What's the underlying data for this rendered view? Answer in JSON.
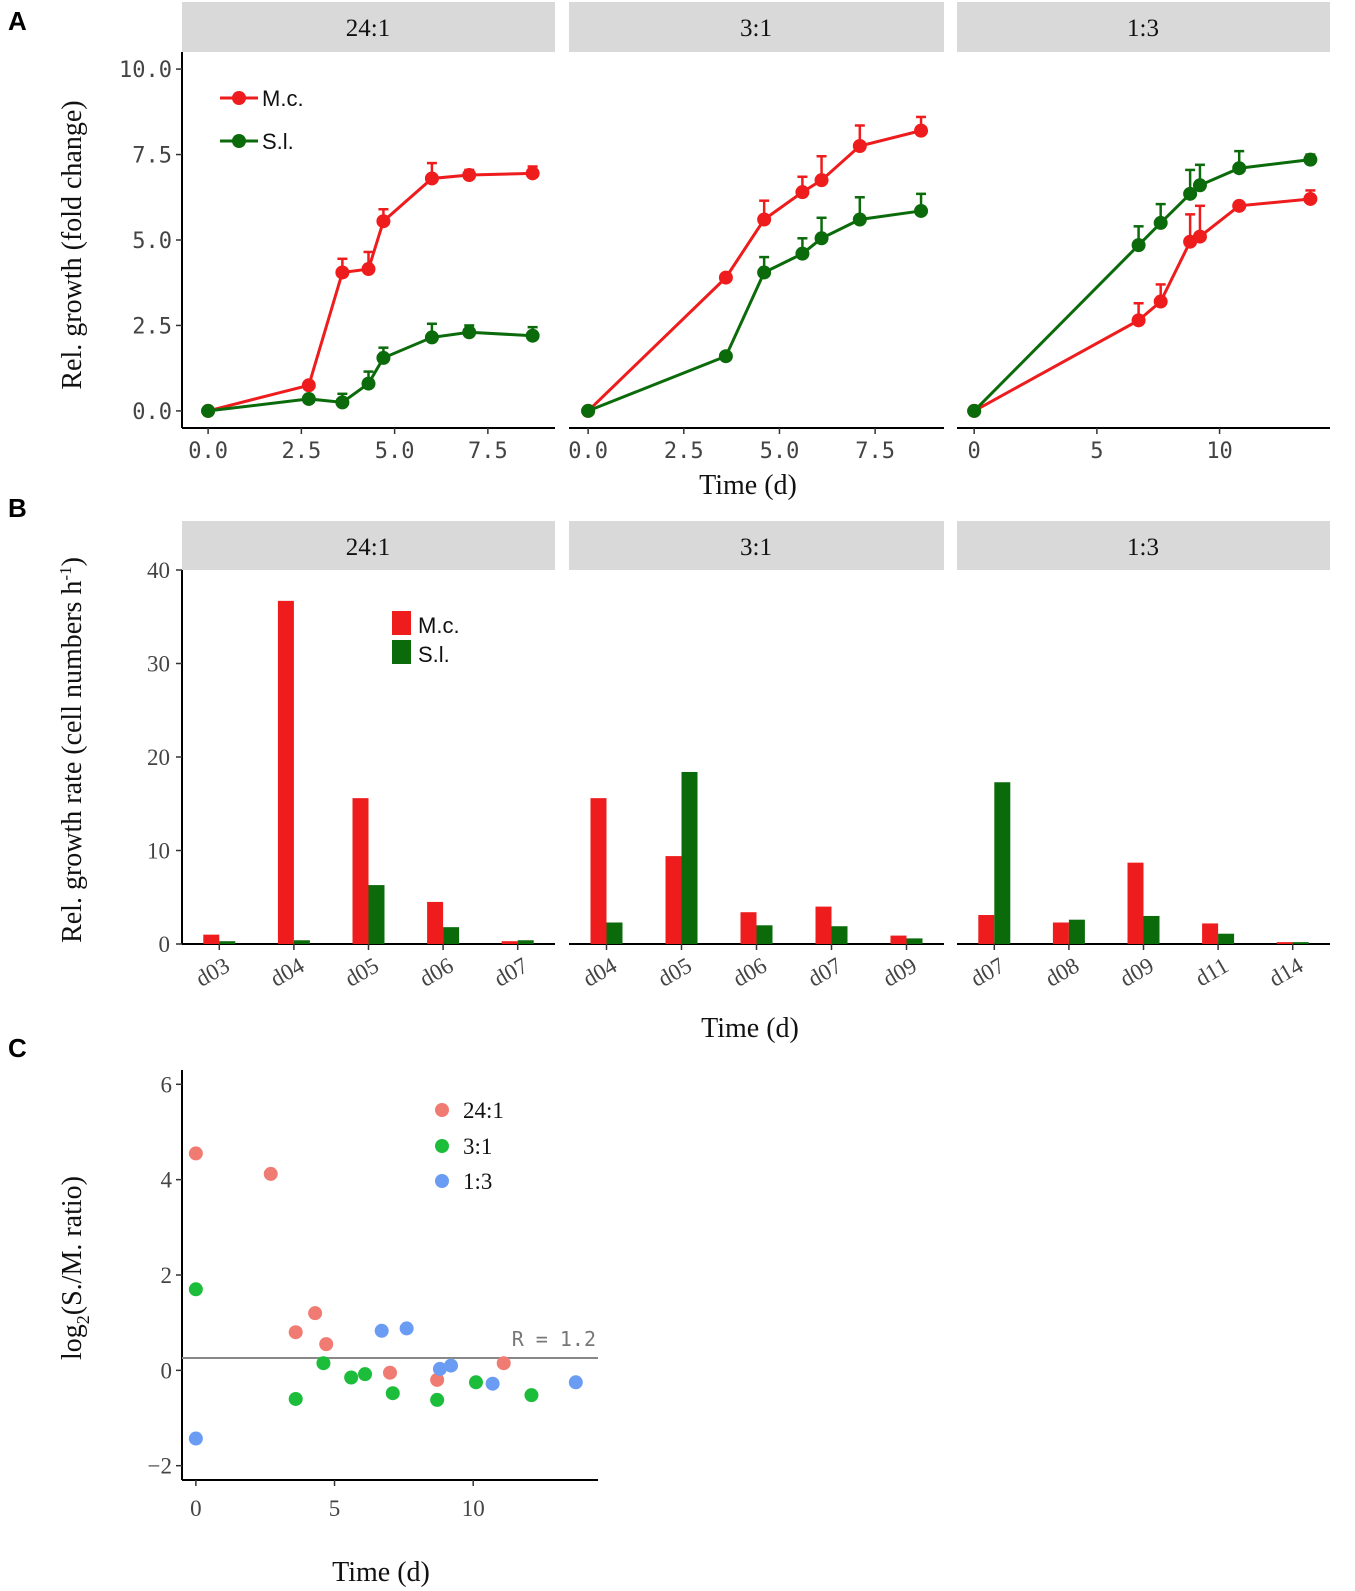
{
  "colors": {
    "mc": "#ee1c1c",
    "sl": "#0b6b0b",
    "c1": "#f07b72",
    "c2": "#1cbd3b",
    "c3": "#6b9cf3",
    "strip": "#d9d9d9",
    "refline": "#888888"
  },
  "panel_labels": [
    "A",
    "B",
    "C"
  ],
  "chart_data": [
    {
      "id": "A",
      "type": "line",
      "ylabel": "Rel. growth (fold change)",
      "xlabel": "Time (d)",
      "ylim": [
        -0.5,
        10.5
      ],
      "y_ticks": [
        0,
        2.5,
        5,
        7.5,
        10
      ],
      "y_tick_labels": [
        "0.0",
        "2.5",
        "5.0",
        "7.5",
        "10.0"
      ],
      "legend": {
        "placement": "top-left",
        "entries": [
          "M.c.",
          "S.l."
        ]
      },
      "facets": [
        {
          "strip": "24:1",
          "xlim": [
            -0.7,
            9.3
          ],
          "x_ticks": [
            0,
            2.5,
            5,
            7.5
          ],
          "x_tick_labels": [
            "0.0",
            "2.5",
            "5.0",
            "7.5"
          ],
          "series": [
            {
              "name": "M.c.",
              "x": [
                0,
                2.7,
                3.6,
                4.3,
                4.7,
                6.0,
                7.0,
                8.7
              ],
              "y": [
                0,
                0.75,
                4.05,
                4.15,
                5.55,
                6.8,
                6.9,
                6.95
              ],
              "err": [
                0,
                0,
                0.4,
                0.5,
                0.35,
                0.45,
                0.15,
                0.2
              ]
            },
            {
              "name": "S.l.",
              "x": [
                0,
                2.7,
                3.6,
                4.3,
                4.7,
                6.0,
                7.0,
                8.7
              ],
              "y": [
                0,
                0.35,
                0.25,
                0.8,
                1.55,
                2.15,
                2.3,
                2.2
              ],
              "err": [
                0,
                0,
                0.25,
                0.35,
                0.3,
                0.4,
                0.2,
                0.25
              ]
            }
          ]
        },
        {
          "strip": "3:1",
          "xlim": [
            -0.5,
            9.3
          ],
          "x_ticks": [
            0,
            2.5,
            5,
            7.5
          ],
          "x_tick_labels": [
            "0.0",
            "2.5",
            "5.0",
            "7.5"
          ],
          "series": [
            {
              "name": "M.c.",
              "x": [
                0,
                3.6,
                4.6,
                5.6,
                6.1,
                7.1,
                8.7
              ],
              "y": [
                0,
                3.9,
                5.6,
                6.4,
                6.75,
                7.75,
                8.2
              ],
              "err": [
                0,
                0,
                0.55,
                0.45,
                0.7,
                0.6,
                0.4
              ]
            },
            {
              "name": "S.l.",
              "x": [
                0,
                3.6,
                4.6,
                5.6,
                6.1,
                7.1,
                8.7
              ],
              "y": [
                0,
                1.6,
                4.05,
                4.6,
                5.05,
                5.6,
                5.85
              ],
              "err": [
                0,
                0,
                0.45,
                0.45,
                0.6,
                0.65,
                0.5
              ]
            }
          ]
        },
        {
          "strip": "1:3",
          "xlim": [
            -0.7,
            14.5
          ],
          "x_ticks": [
            0,
            5,
            10
          ],
          "x_tick_labels": [
            "0",
            "5",
            "10"
          ],
          "series": [
            {
              "name": "M.c.",
              "x": [
                0,
                6.7,
                7.6,
                8.8,
                9.2,
                10.8,
                13.7
              ],
              "y": [
                0,
                2.65,
                3.2,
                4.95,
                5.1,
                6.0,
                6.2
              ],
              "err": [
                0,
                0.5,
                0.5,
                0.8,
                0.9,
                0,
                0.25
              ]
            },
            {
              "name": "S.l.",
              "x": [
                0,
                6.7,
                7.6,
                8.8,
                9.2,
                10.8,
                13.7
              ],
              "y": [
                0,
                4.85,
                5.5,
                6.35,
                6.6,
                7.1,
                7.35
              ],
              "err": [
                0,
                0.55,
                0.55,
                0.7,
                0.6,
                0.5,
                0.15
              ]
            }
          ]
        }
      ]
    },
    {
      "id": "B",
      "type": "bar",
      "ylabel": "Rel. growth rate (cell numbers h",
      "ylabel_sup": "-1",
      "ylabel_end": ")",
      "xlabel": "Time (d)",
      "ylim": [
        0,
        40
      ],
      "y_ticks": [
        0,
        10,
        20,
        30,
        40
      ],
      "y_tick_labels": [
        "0",
        "10",
        "20",
        "30",
        "40"
      ],
      "legend": {
        "placement": "top-center",
        "entries": [
          "M.c.",
          "S.l."
        ]
      },
      "facets": [
        {
          "strip": "24:1",
          "categories": [
            "d03",
            "d04",
            "d05",
            "d06",
            "d07"
          ],
          "series": [
            {
              "name": "M.c.",
              "values": [
                1.0,
                36.7,
                15.6,
                4.5,
                0.3
              ]
            },
            {
              "name": "S.l.",
              "values": [
                0.3,
                0.4,
                6.3,
                1.8,
                0.4
              ]
            }
          ]
        },
        {
          "strip": "3:1",
          "categories": [
            "d04",
            "d05",
            "d06",
            "d07",
            "d09"
          ],
          "series": [
            {
              "name": "M.c.",
              "values": [
                15.6,
                9.4,
                3.4,
                4.0,
                0.9
              ]
            },
            {
              "name": "S.l.",
              "values": [
                2.3,
                18.4,
                2.0,
                1.9,
                0.6
              ]
            }
          ]
        },
        {
          "strip": "1:3",
          "categories": [
            "d07",
            "d08",
            "d09",
            "d11",
            "d14"
          ],
          "series": [
            {
              "name": "M.c.",
              "values": [
                3.1,
                2.3,
                8.7,
                2.2,
                0.2
              ]
            },
            {
              "name": "S.l.",
              "values": [
                17.3,
                2.6,
                3.0,
                1.1,
                0.2
              ]
            }
          ]
        }
      ]
    },
    {
      "id": "C",
      "type": "scatter",
      "ylabel_prefix": "log",
      "ylabel_sub": "2",
      "ylabel_rest": "(S./M. ratio)",
      "xlabel": "Time (d)",
      "xlim": [
        -0.5,
        14.5
      ],
      "ylim": [
        -2.3,
        6.3
      ],
      "x_ticks": [
        0,
        5,
        10
      ],
      "x_tick_labels": [
        "0",
        "5",
        "10"
      ],
      "y_ticks": [
        -2,
        0,
        2,
        4,
        6
      ],
      "y_tick_labels": [
        "−2",
        "0",
        "2",
        "4",
        "6"
      ],
      "reference_line": {
        "y": 0.26,
        "label": "R = 1.2"
      },
      "legend": {
        "placement": "top-center",
        "entries": [
          "24:1",
          "3:1",
          "1:3"
        ]
      },
      "series": [
        {
          "name": "24:1",
          "x": [
            0,
            2.7,
            3.6,
            4.3,
            4.7,
            7.0,
            8.7,
            11.1
          ],
          "y": [
            4.55,
            4.12,
            0.8,
            1.2,
            0.55,
            -0.05,
            -0.2,
            0.15
          ]
        },
        {
          "name": "3:1",
          "x": [
            0,
            3.6,
            4.6,
            5.6,
            6.1,
            7.1,
            8.7,
            10.1,
            12.1
          ],
          "y": [
            1.7,
            -0.6,
            0.15,
            -0.15,
            -0.08,
            -0.48,
            -0.62,
            -0.25,
            -0.52
          ]
        },
        {
          "name": "1:3",
          "x": [
            0,
            6.7,
            7.6,
            8.8,
            9.2,
            10.7,
            13.7
          ],
          "y": [
            -1.43,
            0.83,
            0.88,
            0.03,
            0.1,
            -0.28,
            -0.25
          ]
        }
      ]
    }
  ]
}
